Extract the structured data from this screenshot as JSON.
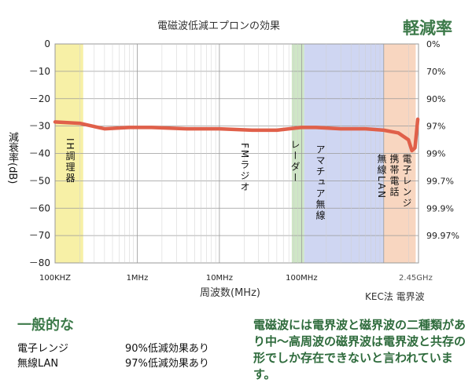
{
  "chart_data": {
    "type": "line",
    "title": "電磁波低減エプロンの効果",
    "right_title": "軽減率",
    "xlabel": "周波数(MHz)",
    "ylabel": "減衰率(dB)",
    "ylim": [
      -80,
      0
    ],
    "yticks": [
      0,
      -10,
      -20,
      -30,
      -40,
      -50,
      -60,
      -70,
      -80
    ],
    "ytick_labels": [
      "0",
      "－10",
      "－20",
      "－30",
      "－40",
      "－50",
      "－60",
      "－70",
      "－80"
    ],
    "right_ticks": [
      {
        "db": 0,
        "label": "0%"
      },
      {
        "db": -10,
        "label": "70%"
      },
      {
        "db": -20,
        "label": "90%"
      },
      {
        "db": -30,
        "label": "97%"
      },
      {
        "db": -40,
        "label": "99%"
      },
      {
        "db": -50,
        "label": "99.7%"
      },
      {
        "db": -60,
        "label": "99.9%"
      },
      {
        "db": -70,
        "label": "99.97%"
      }
    ],
    "xticks": [
      {
        "x": 0.1,
        "label": "100KHZ"
      },
      {
        "x": 1,
        "label": "1MHz"
      },
      {
        "x": 10,
        "label": "10MHz"
      },
      {
        "x": 100,
        "label": "100MHz"
      },
      {
        "x": 2450,
        "label": "2.45GHz"
      }
    ],
    "x_scale": "log",
    "grid": true,
    "bands": [
      {
        "name": "IH調理器",
        "from": 0.1,
        "to": 0.22,
        "color": "#f7f0a6"
      },
      {
        "name": "FMラジオ",
        "from": 76,
        "to": 108,
        "color": "#cfe6c6"
      },
      {
        "name": "アマチュア無線 レーダー",
        "from": 108,
        "to": 1000,
        "color": "#cfd6f2"
      },
      {
        "name": "電子レンジ 携帯電話 無線LAN",
        "from": 1000,
        "to": 2450,
        "color": "#f8d6c0"
      }
    ],
    "band_labels": {
      "ih": "IH調理器",
      "fm": "FMラジオ",
      "ham": "アマチュア無線",
      "radar": "レーダー",
      "microwave": "電子レンジ",
      "mobile": "携帯電話",
      "wlan": "無線LAN"
    },
    "series": [
      {
        "color": "#e0604a",
        "x": [
          0.1,
          0.2,
          0.4,
          0.8,
          1.5,
          4,
          10,
          25,
          50,
          100,
          150,
          300,
          600,
          1000,
          1500,
          2000,
          2200,
          2400,
          2600
        ],
        "values": [
          -28.5,
          -29,
          -31,
          -30.5,
          -30.5,
          -31,
          -31,
          -31.5,
          -31.5,
          -30.5,
          -30.5,
          -31,
          -31,
          -31.5,
          -32.5,
          -35,
          -39,
          -38,
          -27.5
        ]
      }
    ],
    "note": "KEC法  電界波"
  },
  "bottom": {
    "left_heading": "一般的な",
    "rows": [
      {
        "label": "電子レンジ",
        "value": "90%低減効果あり"
      },
      {
        "label": "無線LAN",
        "value": "97%低減効果あり"
      }
    ],
    "right_text": "電磁波には電界波と磁界波の二種類があり中～高周波の磁界波は電界波と共存の形でしか存在できないと言われています。"
  }
}
